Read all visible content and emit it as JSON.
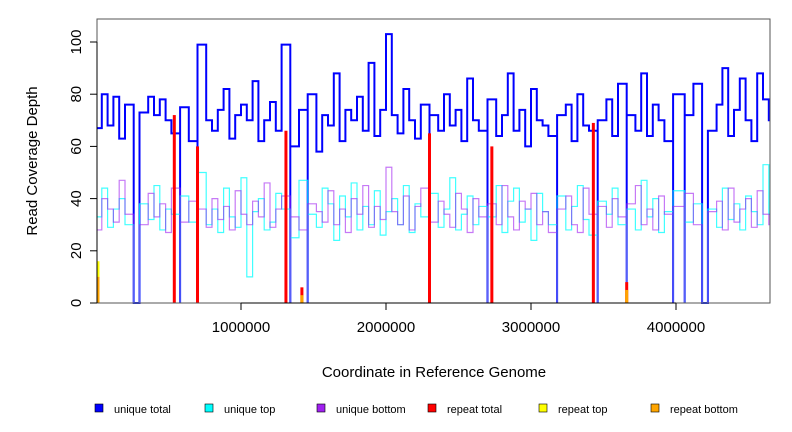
{
  "chart_data": {
    "type": "line",
    "title": "",
    "xlabel": "Coordinate in Reference Genome",
    "ylabel": "Read Coverage Depth",
    "xlim": [
      0,
      4650000
    ],
    "ylim": [
      0,
      108
    ],
    "x_ticks": [
      1000000,
      2000000,
      3000000,
      4000000
    ],
    "x_tick_labels": [
      "1000000",
      "2000000",
      "3000000",
      "4000000"
    ],
    "y_ticks": [
      0,
      20,
      40,
      60,
      80,
      100
    ],
    "y_tick_labels": [
      "0",
      "20",
      "40",
      "60",
      "80",
      "100"
    ],
    "x_step": 40000,
    "legend_placement": "bottom",
    "series": [
      {
        "name": "unique total",
        "color": "#0000FF",
        "values": [
          67,
          80,
          68,
          79,
          63,
          76,
          0,
          0,
          73,
          79,
          72,
          78,
          70,
          65,
          0,
          75,
          62,
          0,
          99,
          70,
          66,
          74,
          82,
          63,
          72,
          76,
          70,
          85,
          62,
          70,
          77,
          66,
          99,
          0,
          60,
          74,
          0,
          80,
          58,
          72,
          68,
          88,
          62,
          74,
          70,
          79,
          66,
          92,
          64,
          74,
          103,
          72,
          65,
          82,
          70,
          63,
          76,
          0,
          72,
          66,
          80,
          68,
          74,
          62,
          86,
          70,
          66,
          0,
          78,
          64,
          72,
          88,
          66,
          74,
          60,
          82,
          70,
          68,
          64,
          0,
          72,
          76,
          62,
          80,
          68,
          66,
          0,
          70,
          78,
          64,
          84,
          0,
          72,
          66,
          88,
          64,
          76,
          70,
          62,
          0,
          80,
          0,
          72,
          84,
          0,
          0,
          66,
          76,
          90,
          64,
          74,
          86,
          70,
          62,
          88,
          78,
          70
        ]
      },
      {
        "name": "unique top",
        "color": "#00FFFF",
        "values": [
          33,
          44,
          29,
          36,
          40,
          30,
          0,
          0,
          38,
          32,
          45,
          28,
          36,
          34,
          0,
          41,
          31,
          0,
          50,
          30,
          36,
          27,
          44,
          33,
          29,
          48,
          10,
          35,
          40,
          28,
          31,
          42,
          36,
          0,
          25,
          47,
          0,
          34,
          29,
          44,
          38,
          24,
          41,
          33,
          46,
          28,
          37,
          30,
          43,
          26,
          35,
          40,
          30,
          45,
          27,
          38,
          33,
          0,
          42,
          29,
          36,
          48,
          28,
          34,
          41,
          30,
          37,
          0,
          33,
          45,
          27,
          39,
          44,
          31,
          36,
          24,
          42,
          35,
          30,
          0,
          41,
          28,
          37,
          45,
          32,
          26,
          0,
          39,
          34,
          44,
          30,
          0,
          36,
          28,
          47,
          33,
          40,
          27,
          35,
          0,
          43,
          0,
          31,
          38,
          0,
          0,
          36,
          29,
          44,
          32,
          38,
          28,
          41,
          35,
          30,
          53,
          34
        ]
      },
      {
        "name": "unique bottom",
        "color": "#A020F0",
        "values": [
          28,
          40,
          36,
          31,
          47,
          34,
          0,
          0,
          30,
          42,
          33,
          38,
          27,
          44,
          0,
          31,
          39,
          0,
          36,
          29,
          40,
          32,
          37,
          28,
          43,
          34,
          30,
          39,
          33,
          46,
          29,
          36,
          41,
          0,
          33,
          28,
          0,
          38,
          35,
          31,
          43,
          30,
          36,
          27,
          40,
          34,
          45,
          29,
          37,
          32,
          52,
          35,
          30,
          41,
          28,
          37,
          44,
          0,
          31,
          39,
          34,
          29,
          42,
          36,
          27,
          40,
          33,
          0,
          38,
          30,
          45,
          33,
          28,
          39,
          36,
          42,
          30,
          35,
          27,
          0,
          36,
          41,
          30,
          27,
          44,
          34,
          0,
          37,
          29,
          40,
          33,
          0,
          38,
          45,
          30,
          36,
          28,
          41,
          34,
          0,
          37,
          0,
          42,
          30,
          0,
          0,
          35,
          39,
          28,
          44,
          31,
          36,
          40,
          29,
          43,
          34,
          30
        ]
      },
      {
        "name": "repeat total",
        "color": "#FF0000",
        "points": [
          [
            540000,
            72
          ],
          [
            700000,
            60
          ],
          [
            1310000,
            66
          ],
          [
            1420000,
            6
          ],
          [
            2300000,
            65
          ],
          [
            2730000,
            60
          ],
          [
            3430000,
            69
          ],
          [
            3660000,
            8
          ]
        ]
      },
      {
        "name": "repeat top",
        "color": "#FFFF00",
        "points": [
          [
            0,
            16
          ]
        ]
      },
      {
        "name": "repeat bottom",
        "color": "#FFA500",
        "points": [
          [
            0,
            10
          ],
          [
            1420000,
            3
          ],
          [
            3660000,
            5
          ]
        ]
      }
    ]
  }
}
